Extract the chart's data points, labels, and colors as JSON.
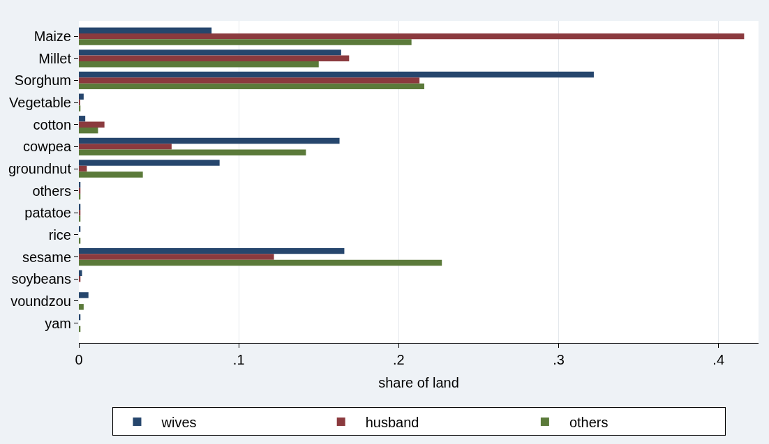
{
  "chart_data": {
    "type": "bar",
    "orientation": "horizontal",
    "xlabel": "share of land",
    "categories": [
      "Maize",
      "Millet",
      "Sorghum",
      "Vegetable",
      "cotton",
      "cowpea",
      "groundnut",
      "others",
      "patatoe",
      "rice",
      "sesame",
      "soybeans",
      "voundzou",
      "yam"
    ],
    "series": [
      {
        "name": "wives",
        "color": "#26466d",
        "values": [
          0.083,
          0.164,
          0.322,
          0.003,
          0.004,
          0.163,
          0.088,
          0.001,
          0.001,
          0.001,
          0.166,
          0.002,
          0.006,
          0.001
        ]
      },
      {
        "name": "husband",
        "color": "#8b3a3e",
        "values": [
          0.416,
          0.169,
          0.213,
          0.0005,
          0.016,
          0.058,
          0.005,
          0.001,
          0.001,
          null,
          0.122,
          0.001,
          null,
          null
        ]
      },
      {
        "name": "others",
        "color": "#5b7a3a",
        "values": [
          0.208,
          0.15,
          0.216,
          0.001,
          0.012,
          0.142,
          0.04,
          0.001,
          0.001,
          0.001,
          0.227,
          null,
          0.003,
          0.001
        ]
      }
    ],
    "xlim": [
      0,
      0.425
    ],
    "xticks": [
      0,
      {
        "value": 0.1,
        "label": ".1"
      },
      {
        "value": 0.2,
        "label": ".2"
      },
      {
        "value": 0.3,
        "label": ".3"
      },
      {
        "value": 0.4,
        "label": ".4"
      }
    ],
    "grid": "x",
    "legend": "bottom"
  }
}
